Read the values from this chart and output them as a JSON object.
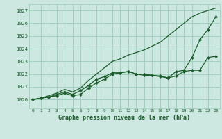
{
  "bg_color": "#cce8e0",
  "grid_color": "#99ccbb",
  "line_color": "#1a5c2a",
  "title": "Graphe pression niveau de la mer (hPa)",
  "xlim": [
    -0.5,
    23.5
  ],
  "ylim": [
    1019.3,
    1027.5
  ],
  "yticks": [
    1020,
    1021,
    1022,
    1023,
    1024,
    1025,
    1026,
    1027
  ],
  "xticks": [
    0,
    1,
    2,
    3,
    4,
    5,
    6,
    7,
    8,
    9,
    10,
    11,
    12,
    13,
    14,
    15,
    16,
    17,
    18,
    19,
    20,
    21,
    22,
    23
  ],
  "series": [
    {
      "x": [
        0,
        1,
        2,
        3,
        4,
        5,
        6,
        7,
        8,
        9,
        10,
        11,
        12,
        13,
        14,
        15,
        16,
        17,
        18,
        19,
        20,
        21,
        22,
        23
      ],
      "y": [
        1020.0,
        1020.1,
        1020.3,
        1020.5,
        1020.8,
        1020.6,
        1020.9,
        1021.5,
        1022.0,
        1022.5,
        1023.0,
        1023.2,
        1023.5,
        1023.7,
        1023.9,
        1024.2,
        1024.5,
        1025.0,
        1025.5,
        1026.0,
        1026.5,
        1026.8,
        1027.0,
        1027.2
      ],
      "marker": null,
      "markersize": 0,
      "linewidth": 0.9
    },
    {
      "x": [
        0,
        1,
        2,
        3,
        4,
        5,
        6,
        7,
        8,
        9,
        10,
        11,
        12,
        13,
        14,
        15,
        16,
        17,
        18,
        19,
        20,
        21,
        22,
        23
      ],
      "y": [
        1020.0,
        1020.1,
        1020.2,
        1020.4,
        1020.6,
        1020.4,
        1020.7,
        1021.1,
        1021.6,
        1021.8,
        1022.1,
        1022.1,
        1022.2,
        1022.0,
        1022.0,
        1021.9,
        1021.8,
        1021.7,
        1022.2,
        1022.3,
        1023.3,
        1024.7,
        1025.5,
        1026.5
      ],
      "marker": "D",
      "markersize": 2.2,
      "linewidth": 0.9
    },
    {
      "x": [
        0,
        1,
        2,
        3,
        4,
        5,
        6,
        7,
        8,
        9,
        10,
        11,
        12,
        13,
        14,
        15,
        16,
        17,
        18,
        19,
        20,
        21,
        22,
        23
      ],
      "y": [
        1020.0,
        1020.1,
        1020.2,
        1020.3,
        1020.5,
        1020.3,
        1020.4,
        1020.9,
        1021.3,
        1021.6,
        1022.0,
        1022.1,
        1022.2,
        1022.0,
        1021.9,
        1021.9,
        1021.85,
        1021.7,
        1021.85,
        1022.2,
        1022.3,
        1022.3,
        1023.3,
        1023.4
      ],
      "marker": "D",
      "markersize": 2.2,
      "linewidth": 0.9
    }
  ]
}
